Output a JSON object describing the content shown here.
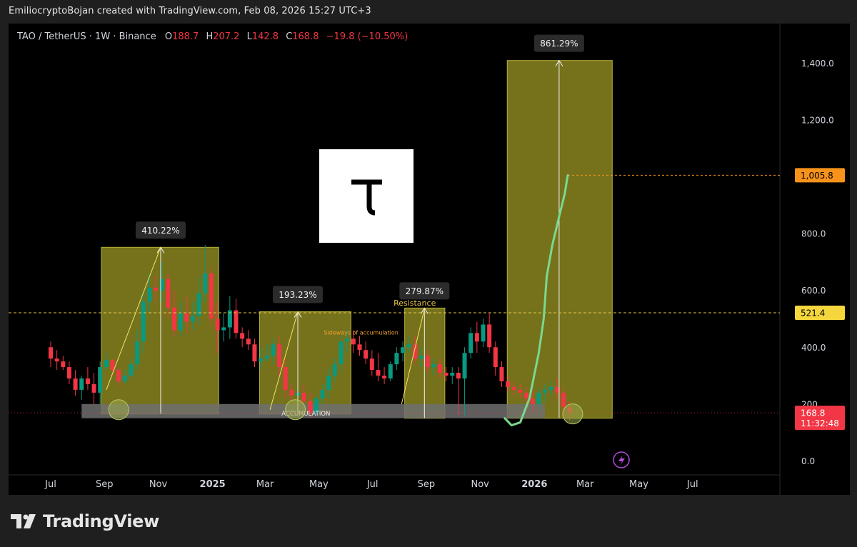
{
  "credit": "EmiliocryptoBojan created with TradingView.com, Feb 08, 2026 15:27 UTC+3",
  "legend": {
    "symbol": "TAO / TetherUS · 1W · Binance",
    "o_label": "O",
    "o_value": "188.7",
    "h_label": "H",
    "h_value": "207.2",
    "l_label": "L",
    "l_value": "142.8",
    "c_label": "C",
    "c_value": "168.8",
    "change": "−19.8 (−10.50%)"
  },
  "brand": {
    "logo_text": "TradingView"
  },
  "colors": {
    "up": "#089981",
    "down": "#f23645",
    "zone": "#8a8620",
    "accum": "#6e6e6e",
    "projection": "#7bd88f",
    "dashed": "#e6c84b",
    "orange": "#f7931a"
  },
  "chart_data": {
    "type": "candlestick",
    "interval": "1W",
    "yaxis": {
      "ticks": [
        0,
        200,
        400,
        600,
        800,
        1000,
        1200,
        1400
      ],
      "tick_labels": [
        "0.0",
        "200",
        "400.0",
        "600.0",
        "800.0",
        "",
        "1,200.0",
        "1,400.0"
      ],
      "range": [
        -120,
        1540
      ]
    },
    "xaxis": {
      "tick_labels": [
        {
          "label": "Jul",
          "bold": false,
          "idx": 0
        },
        {
          "label": "Sep",
          "bold": false,
          "idx": 8.7
        },
        {
          "label": "Nov",
          "bold": false,
          "idx": 17.4
        },
        {
          "label": "2025",
          "bold": true,
          "idx": 26.2
        },
        {
          "label": "Mar",
          "bold": false,
          "idx": 34.7
        },
        {
          "label": "May",
          "bold": false,
          "idx": 43.4
        },
        {
          "label": "Jul",
          "bold": false,
          "idx": 52.1
        },
        {
          "label": "Sep",
          "bold": false,
          "idx": 60.8
        },
        {
          "label": "Nov",
          "bold": false,
          "idx": 69.5
        },
        {
          "label": "2026",
          "bold": true,
          "idx": 78.3
        },
        {
          "label": "Mar",
          "bold": false,
          "idx": 86.5
        },
        {
          "label": "May",
          "bold": false,
          "idx": 95.2
        },
        {
          "label": "Jul",
          "bold": false,
          "idx": 103.9
        }
      ]
    },
    "candles": [
      [
        400,
        420,
        330,
        360
      ],
      [
        360,
        390,
        320,
        350
      ],
      [
        350,
        370,
        320,
        330
      ],
      [
        330,
        350,
        270,
        290
      ],
      [
        290,
        320,
        230,
        250
      ],
      [
        250,
        300,
        215,
        290
      ],
      [
        290,
        330,
        250,
        270
      ],
      [
        270,
        310,
        200,
        240
      ],
      [
        240,
        350,
        200,
        330
      ],
      [
        330,
        380,
        320,
        355
      ],
      [
        355,
        360,
        300,
        320
      ],
      [
        320,
        330,
        260,
        280
      ],
      [
        280,
        320,
        270,
        300
      ],
      [
        300,
        360,
        290,
        340
      ],
      [
        340,
        460,
        320,
        420
      ],
      [
        420,
        600,
        380,
        560
      ],
      [
        560,
        660,
        520,
        610
      ],
      [
        610,
        650,
        560,
        600
      ],
      [
        600,
        700,
        560,
        640
      ],
      [
        640,
        660,
        500,
        540
      ],
      [
        540,
        600,
        440,
        460
      ],
      [
        460,
        560,
        440,
        520
      ],
      [
        520,
        580,
        450,
        490
      ],
      [
        490,
        560,
        460,
        510
      ],
      [
        510,
        650,
        480,
        590
      ],
      [
        590,
        760,
        560,
        660
      ],
      [
        660,
        680,
        480,
        500
      ],
      [
        500,
        560,
        380,
        460
      ],
      [
        460,
        520,
        420,
        470
      ],
      [
        470,
        580,
        430,
        530
      ],
      [
        530,
        570,
        430,
        450
      ],
      [
        450,
        470,
        400,
        430
      ],
      [
        430,
        460,
        390,
        410
      ],
      [
        410,
        430,
        330,
        350
      ],
      [
        350,
        400,
        320,
        360
      ],
      [
        360,
        410,
        350,
        370
      ],
      [
        370,
        430,
        340,
        410
      ],
      [
        410,
        440,
        300,
        330
      ],
      [
        330,
        360,
        220,
        250
      ],
      [
        250,
        270,
        210,
        230
      ],
      [
        230,
        260,
        210,
        240
      ],
      [
        240,
        270,
        200,
        210
      ],
      [
        210,
        240,
        150,
        170
      ],
      [
        170,
        230,
        160,
        220
      ],
      [
        220,
        270,
        200,
        250
      ],
      [
        250,
        330,
        220,
        300
      ],
      [
        300,
        360,
        280,
        340
      ],
      [
        340,
        440,
        320,
        420
      ],
      [
        420,
        460,
        380,
        430
      ],
      [
        430,
        460,
        380,
        410
      ],
      [
        410,
        440,
        370,
        390
      ],
      [
        390,
        420,
        340,
        360
      ],
      [
        360,
        390,
        300,
        320
      ],
      [
        320,
        380,
        280,
        300
      ],
      [
        300,
        330,
        270,
        290
      ],
      [
        290,
        350,
        280,
        340
      ],
      [
        340,
        400,
        320,
        380
      ],
      [
        380,
        420,
        350,
        400
      ],
      [
        400,
        440,
        380,
        410
      ],
      [
        410,
        440,
        340,
        360
      ],
      [
        360,
        400,
        330,
        370
      ],
      [
        370,
        390,
        310,
        330
      ],
      [
        330,
        360,
        300,
        340
      ],
      [
        340,
        360,
        290,
        310
      ],
      [
        310,
        330,
        280,
        300
      ],
      [
        300,
        330,
        270,
        310
      ],
      [
        310,
        330,
        160,
        290
      ],
      [
        290,
        400,
        160,
        380
      ],
      [
        380,
        470,
        360,
        450
      ],
      [
        450,
        490,
        380,
        420
      ],
      [
        420,
        500,
        400,
        480
      ],
      [
        480,
        520,
        380,
        400
      ],
      [
        400,
        420,
        300,
        330
      ],
      [
        330,
        350,
        260,
        280
      ],
      [
        280,
        300,
        240,
        260
      ],
      [
        260,
        280,
        230,
        250
      ],
      [
        250,
        270,
        220,
        240
      ],
      [
        240,
        260,
        180,
        220
      ],
      [
        220,
        250,
        170,
        200
      ],
      [
        200,
        260,
        190,
        240
      ],
      [
        240,
        270,
        210,
        250
      ],
      [
        250,
        280,
        230,
        260
      ],
      [
        260,
        290,
        220,
        240
      ],
      [
        240,
        260,
        150,
        190
      ],
      [
        188.7,
        207.2,
        142.8,
        168.8
      ]
    ],
    "zones": [
      {
        "x0": 8.2,
        "x1": 27.2,
        "y0": 165,
        "y1": 752,
        "measure": "410.22%",
        "arrow_x": 17.8
      },
      {
        "x0": 33.8,
        "x1": 48.6,
        "y0": 165,
        "y1": 525,
        "measure": "193.23%",
        "arrow_x": 40
      },
      {
        "x0": 57.3,
        "x1": 63.8,
        "y0": 150,
        "y1": 538,
        "measure": "279.87%",
        "arrow_x": 60.5
      },
      {
        "x0": 73.9,
        "x1": 90.9,
        "y0": 150,
        "y1": 1410,
        "measure": "861.29%",
        "arrow_x": 82.3
      }
    ],
    "accumulation": {
      "x0": 5,
      "x1": 80,
      "y0": 150,
      "y1": 200,
      "label": "ACCUMULATION"
    },
    "resistance": {
      "y": 521.4,
      "label": "Resistance"
    },
    "sideways_label": "Sideways of accumulation",
    "target": {
      "y": 1005.8
    },
    "projection": [
      [
        73.5,
        150
      ],
      [
        74.6,
        125
      ],
      [
        76.0,
        135
      ],
      [
        77.5,
        220
      ],
      [
        79.0,
        380
      ],
      [
        79.8,
        500
      ],
      [
        80.3,
        650
      ],
      [
        81.2,
        760
      ],
      [
        82.3,
        860
      ],
      [
        83.2,
        940
      ],
      [
        83.7,
        1005.8
      ]
    ],
    "price_labels": {
      "target": "1,005.8",
      "resistance": "521.4",
      "current": "168.8",
      "countdown": "11:32:48"
    }
  }
}
